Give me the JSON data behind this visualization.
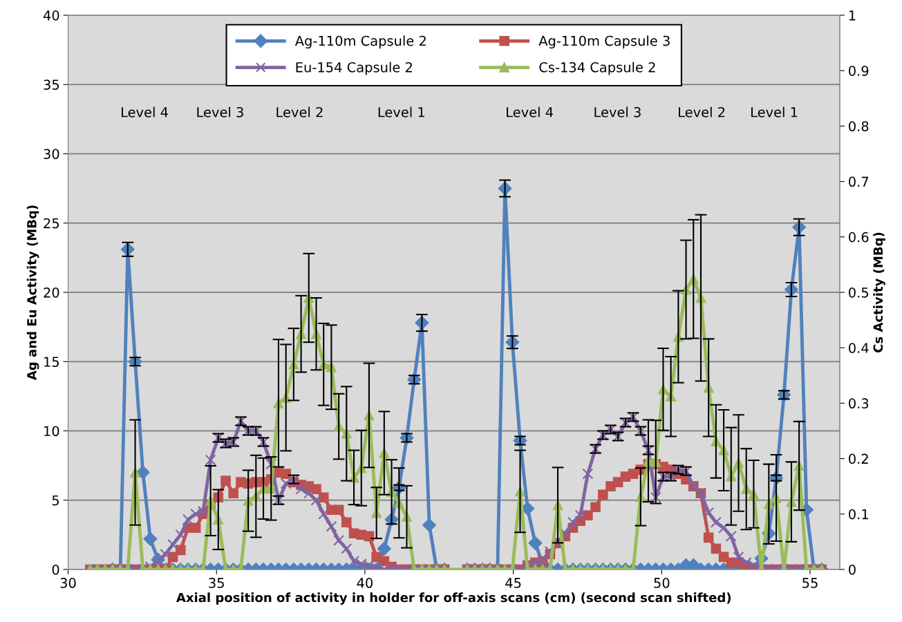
{
  "chart_data": {
    "type": "line",
    "xlabel": "Axial position of activity in holder for off-axis scans (cm) (second scan shifted)",
    "ylabel": "Ag and Eu Activity (MBq)",
    "y2label": "Cs Activity (MBq)",
    "xlim": [
      30,
      56
    ],
    "xticks": [
      30,
      35,
      40,
      45,
      50,
      55
    ],
    "ylim": [
      0,
      40
    ],
    "yticks": [
      0,
      5,
      10,
      15,
      20,
      25,
      30,
      35,
      40
    ],
    "y2lim": [
      0,
      1
    ],
    "y2ticks": [
      0,
      0.1,
      0.2,
      0.3,
      0.4,
      0.5,
      0.6,
      0.7,
      0.8,
      0.9,
      1
    ],
    "grid": "y",
    "legend": "top",
    "x": [
      30.74,
      30.99,
      31.25,
      31.5,
      31.76,
      32.01,
      32.26,
      32.52,
      32.77,
      33.03,
      33.28,
      33.53,
      33.79,
      34.04,
      34.3,
      34.55,
      34.8,
      35.06,
      35.31,
      35.57,
      35.82,
      36.07,
      36.33,
      36.58,
      36.84,
      37.09,
      37.34,
      37.6,
      37.85,
      38.11,
      38.36,
      38.61,
      38.87,
      39.12,
      39.38,
      39.63,
      39.88,
      40.14,
      40.39,
      40.65,
      40.9,
      41.15,
      41.41,
      41.66,
      41.92,
      42.17,
      42.42,
      42.68,
      43.05,
      43.45,
      43.7,
      43.96,
      44.21,
      44.47,
      44.72,
      44.97,
      45.23,
      45.48,
      45.74,
      45.99,
      46.24,
      46.5,
      46.75,
      47.01,
      47.26,
      47.51,
      47.77,
      48.02,
      48.28,
      48.53,
      48.78,
      49.04,
      49.29,
      49.55,
      49.8,
      50.05,
      50.31,
      50.56,
      50.82,
      51.07,
      51.32,
      51.58,
      51.83,
      52.09,
      52.34,
      52.59,
      52.85,
      53.1,
      53.36,
      53.61,
      53.86,
      54.12,
      54.37,
      54.63,
      54.88,
      55.13,
      55.39
    ],
    "series": [
      {
        "name": "Ag-110m Capsule 2",
        "color": "#4f81bd",
        "marker": "diamond",
        "values": [
          null,
          null,
          null,
          0,
          0,
          23.1,
          15.0,
          7.0,
          2.2,
          0.7,
          0,
          0,
          0,
          0,
          0,
          0,
          0,
          0,
          0,
          0,
          0,
          0,
          0,
          0,
          0,
          0,
          0,
          0,
          0,
          0,
          0,
          0,
          0,
          0,
          0,
          0,
          0,
          0,
          0,
          1.5,
          3.6,
          5.9,
          9.5,
          13.7,
          17.8,
          3.2,
          0,
          0,
          null,
          0,
          0,
          0,
          0,
          0,
          27.5,
          16.4,
          9.3,
          4.4,
          1.9,
          0.4,
          0,
          0,
          0,
          0,
          0,
          0,
          0,
          0,
          0,
          0,
          0,
          0,
          0,
          0,
          0,
          0,
          0,
          0,
          0.3,
          0.3,
          0,
          0,
          0,
          0,
          0,
          0,
          0,
          0,
          0.8,
          2.6,
          6.6,
          12.6,
          20.2,
          24.7,
          4.3,
          0,
          0
        ],
        "errors": [
          null,
          null,
          null,
          null,
          null,
          0.5,
          0.3,
          null,
          null,
          null,
          null,
          null,
          null,
          null,
          null,
          null,
          null,
          null,
          null,
          null,
          null,
          null,
          null,
          null,
          null,
          null,
          null,
          null,
          null,
          null,
          null,
          null,
          null,
          null,
          null,
          null,
          null,
          null,
          null,
          null,
          null,
          0.2,
          0.3,
          0.3,
          0.6,
          null,
          null,
          null,
          null,
          null,
          null,
          null,
          null,
          null,
          0.6,
          0.45,
          0.3,
          null,
          null,
          null,
          null,
          null,
          null,
          null,
          null,
          null,
          null,
          null,
          null,
          null,
          null,
          null,
          null,
          null,
          null,
          null,
          null,
          null,
          null,
          null,
          null,
          null,
          null,
          null,
          null,
          null,
          null,
          null,
          null,
          null,
          0.2,
          0.3,
          0.5,
          0.6,
          null,
          null,
          null
        ]
      },
      {
        "name": "Ag-110m Capsule 3",
        "color": "#c0504d",
        "marker": "square",
        "values": [
          0,
          0,
          0,
          0,
          0,
          0,
          0,
          0,
          0,
          0,
          0,
          0.9,
          1.4,
          3.0,
          3.0,
          4.0,
          4.7,
          5.2,
          6.4,
          5.5,
          6.3,
          6.2,
          6.3,
          6.3,
          6.5,
          7.0,
          6.9,
          6.3,
          6.1,
          6.0,
          5.8,
          5.2,
          4.3,
          4.3,
          3.4,
          2.6,
          2.5,
          2.4,
          0.9,
          0.6,
          0.2,
          0,
          0,
          0,
          0,
          0,
          0,
          0,
          null,
          0,
          0,
          0,
          0,
          0,
          0,
          0,
          0,
          0.3,
          0.5,
          0.6,
          1.1,
          1.9,
          2.4,
          3.0,
          3.5,
          3.9,
          4.5,
          5.4,
          6.0,
          6.3,
          6.7,
          6.9,
          7.2,
          7.6,
          7.6,
          7.4,
          7.2,
          6.9,
          6.5,
          6.0,
          5.5,
          2.3,
          1.5,
          0.9,
          0.5,
          0.5,
          0.2,
          0,
          0,
          0,
          0,
          0,
          0,
          0,
          0,
          0,
          0
        ]
      },
      {
        "name": "Eu-154 Capsule 2",
        "color": "#8064a2",
        "marker": "cross",
        "values": [
          0,
          0,
          0,
          0,
          0,
          0,
          0,
          0,
          0.2,
          0.6,
          1.1,
          1.8,
          2.5,
          3.6,
          4.0,
          4.2,
          7.9,
          9.5,
          9.1,
          9.2,
          10.7,
          10.0,
          10.0,
          9.2,
          7.6,
          5.0,
          6.2,
          6.5,
          5.8,
          5.5,
          5.0,
          4.0,
          3.1,
          2.1,
          1.5,
          0.6,
          0.4,
          0.3,
          0.1,
          0,
          0,
          0,
          0,
          0,
          0,
          0,
          0,
          0,
          null,
          0,
          0,
          0,
          0,
          0,
          0,
          0,
          0,
          0.3,
          0.5,
          0.7,
          1.3,
          2.0,
          2.6,
          3.4,
          3.9,
          6.9,
          8.7,
          9.7,
          10.1,
          9.6,
          10.6,
          11.0,
          10.0,
          8.6,
          5.2,
          6.7,
          6.7,
          7.2,
          7.1,
          6.0,
          5.5,
          4.1,
          3.4,
          3.0,
          2.4,
          0.9,
          0.5,
          0.3,
          0,
          0,
          0,
          0,
          0,
          0,
          0,
          0,
          0
        ],
        "errors": [
          null,
          null,
          null,
          null,
          null,
          null,
          null,
          null,
          null,
          null,
          null,
          null,
          null,
          null,
          null,
          null,
          null,
          0.3,
          0.3,
          0.3,
          0.3,
          0.3,
          0.3,
          0.3,
          null,
          0.3,
          null,
          0.3,
          null,
          null,
          null,
          null,
          null,
          null,
          null,
          null,
          null,
          null,
          null,
          null,
          null,
          null,
          null,
          null,
          null,
          null,
          null,
          null,
          null,
          null,
          null,
          null,
          null,
          null,
          null,
          null,
          null,
          null,
          null,
          null,
          null,
          null,
          null,
          null,
          null,
          null,
          0.3,
          0.3,
          0.3,
          0.3,
          0.3,
          0.3,
          0.3,
          0.3,
          null,
          0.3,
          0.3,
          0.3,
          0.3,
          null,
          null,
          null,
          null,
          null,
          null,
          null,
          null,
          null,
          null,
          null,
          null,
          null,
          null,
          null,
          null,
          null,
          null
        ]
      },
      {
        "name": "Cs-134 Capsule 2",
        "color": "#9bbb59",
        "marker": "triangle",
        "axis": "y2",
        "x": [
          30.74,
          30.99,
          31.25,
          31.5,
          31.76,
          32.01,
          32.26,
          32.52,
          32.77,
          33.03,
          33.28,
          33.53,
          33.79,
          34.04,
          34.3,
          34.55,
          34.8,
          35.06,
          35.31,
          35.57,
          35.82,
          36.07,
          36.33,
          36.58,
          36.84,
          37.09,
          37.34,
          37.6,
          37.85,
          38.11,
          38.36,
          38.61,
          38.87,
          39.12,
          39.38,
          39.63,
          39.88,
          40.14,
          40.39,
          40.65,
          40.9,
          41.15,
          41.41,
          41.66,
          41.92,
          42.17,
          42.42,
          42.68,
          43.45,
          43.7,
          43.96,
          44.21,
          44.47,
          44.72,
          44.97,
          45.23,
          45.48,
          45.74,
          45.99,
          46.24,
          46.5,
          46.75,
          47.01,
          47.26,
          47.51,
          47.77,
          48.02,
          48.28,
          48.53,
          48.78,
          49.04,
          49.29,
          49.55,
          49.8,
          50.05,
          50.31,
          50.56,
          50.82,
          51.07,
          51.32,
          51.58,
          51.83,
          52.09,
          52.34,
          52.59,
          52.85,
          53.1,
          53.36,
          53.61,
          53.86,
          54.12,
          54.37,
          54.63,
          54.88,
          55.13,
          55.39
        ],
        "values": [
          0,
          0,
          0,
          0,
          0,
          0,
          0.175,
          0,
          0,
          0,
          0,
          0,
          0,
          0,
          0,
          0,
          0.124,
          0.09,
          0,
          0,
          0,
          0.124,
          0.132,
          0.146,
          0.146,
          0.3,
          0.31,
          0.37,
          0.425,
          0.49,
          0.425,
          0.37,
          0.365,
          0.258,
          0.245,
          0.166,
          0.183,
          0.278,
          0.102,
          0.21,
          0.14,
          0.12,
          0.095,
          0,
          0,
          0,
          0,
          0,
          0,
          0,
          0,
          0,
          0,
          0,
          0,
          0.141,
          0,
          0,
          0,
          0,
          0.116,
          0,
          0,
          0,
          0,
          0,
          0,
          0,
          0,
          0,
          0,
          0.131,
          0.196,
          0.194,
          0.325,
          0.312,
          0.42,
          0.505,
          0.524,
          0.49,
          0.328,
          0.231,
          0.215,
          0.168,
          0.192,
          0.145,
          0.136,
          0,
          0.118,
          0.129,
          0,
          0.122,
          0.187,
          0,
          0,
          0
        ],
        "errors": [
          null,
          null,
          null,
          null,
          null,
          null,
          0.095,
          null,
          null,
          null,
          null,
          null,
          null,
          null,
          null,
          null,
          0.063,
          0.054,
          null,
          null,
          null,
          0.055,
          0.074,
          0.055,
          0.057,
          0.115,
          0.096,
          0.065,
          0.069,
          0.08,
          0.065,
          0.074,
          0.076,
          0.059,
          0.085,
          0.049,
          0.068,
          0.094,
          0.046,
          0.075,
          0.058,
          0.063,
          0.056,
          null,
          null,
          null,
          null,
          null,
          null,
          null,
          null,
          null,
          null,
          null,
          null,
          0.074,
          null,
          null,
          null,
          null,
          0.068,
          null,
          null,
          null,
          null,
          null,
          null,
          null,
          null,
          null,
          null,
          0.052,
          0.074,
          0.075,
          0.074,
          0.072,
          0.083,
          0.089,
          0.107,
          0.15,
          0.088,
          0.066,
          0.073,
          0.088,
          0.087,
          0.073,
          0.061,
          null,
          0.072,
          0.078,
          null,
          0.072,
          0.08,
          null,
          null,
          null
        ]
      }
    ],
    "annotations": [
      "Level 4",
      "Level 3",
      "Level 2",
      "Level 1",
      "Level 4",
      "Level 3",
      "Level 2",
      "Level 1"
    ]
  }
}
